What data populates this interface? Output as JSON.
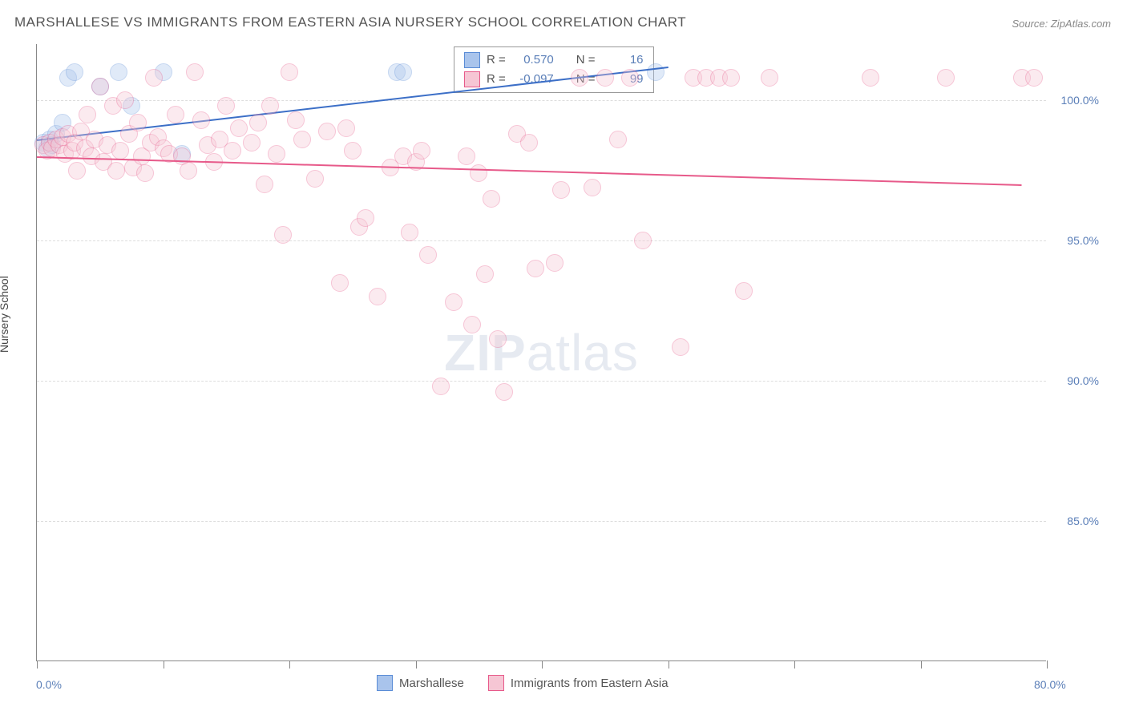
{
  "title": "MARSHALLESE VS IMMIGRANTS FROM EASTERN ASIA NURSERY SCHOOL CORRELATION CHART",
  "source": "Source: ZipAtlas.com",
  "watermark": {
    "zip": "ZIP",
    "atlas": "atlas"
  },
  "chart": {
    "type": "scatter",
    "background_color": "#ffffff",
    "grid_color": "#dddddd",
    "axis_color": "#888888",
    "y_axis_title": "Nursery School",
    "xlim": [
      0,
      80
    ],
    "ylim": [
      80,
      102
    ],
    "x_labels": {
      "min": "0.0%",
      "max": "80.0%"
    },
    "y_ticks": [
      85,
      90,
      95,
      100
    ],
    "y_tick_labels": [
      "85.0%",
      "90.0%",
      "95.0%",
      "100.0%"
    ],
    "x_tick_positions": [
      0,
      10,
      20,
      30,
      40,
      50,
      60,
      70,
      80
    ],
    "marker_radius": 11,
    "marker_opacity": 0.35,
    "label_fontsize": 14,
    "label_color": "#5b7fb8",
    "series": [
      {
        "name": "Marshallese",
        "color_fill": "#a9c4ec",
        "color_stroke": "#5a8cd6",
        "r_value": "0.570",
        "n_value": "16",
        "trend": {
          "x1": 0,
          "y1": 98.6,
          "x2": 50,
          "y2": 101.2,
          "color": "#3c6fc7",
          "width": 2
        },
        "points": [
          [
            0.5,
            98.5
          ],
          [
            0.8,
            98.3
          ],
          [
            1.0,
            98.6
          ],
          [
            1.2,
            98.4
          ],
          [
            1.5,
            98.8
          ],
          [
            2.0,
            99.2
          ],
          [
            2.5,
            100.8
          ],
          [
            3.0,
            101.0
          ],
          [
            5.0,
            100.5
          ],
          [
            6.5,
            101.0
          ],
          [
            7.5,
            99.8
          ],
          [
            10.0,
            101.0
          ],
          [
            11.5,
            98.1
          ],
          [
            28.5,
            101.0
          ],
          [
            29.0,
            101.0
          ],
          [
            49.0,
            101.0
          ]
        ]
      },
      {
        "name": "Immigrants from Eastern Asia",
        "color_fill": "#f6c6d4",
        "color_stroke": "#e75a8a",
        "r_value": "-0.097",
        "n_value": "99",
        "trend": {
          "x1": 0,
          "y1": 98.0,
          "x2": 78,
          "y2": 97.0,
          "color": "#e75a8a",
          "width": 2
        },
        "points": [
          [
            0.5,
            98.4
          ],
          [
            0.8,
            98.2
          ],
          [
            1.0,
            98.5
          ],
          [
            1.2,
            98.3
          ],
          [
            1.5,
            98.6
          ],
          [
            1.8,
            98.4
          ],
          [
            2.0,
            98.7
          ],
          [
            2.2,
            98.1
          ],
          [
            2.5,
            98.8
          ],
          [
            2.8,
            98.2
          ],
          [
            3.0,
            98.5
          ],
          [
            3.2,
            97.5
          ],
          [
            3.5,
            98.9
          ],
          [
            3.8,
            98.3
          ],
          [
            4.0,
            99.5
          ],
          [
            4.3,
            98.0
          ],
          [
            4.6,
            98.6
          ],
          [
            5.0,
            100.5
          ],
          [
            5.3,
            97.8
          ],
          [
            5.6,
            98.4
          ],
          [
            6.0,
            99.8
          ],
          [
            6.3,
            97.5
          ],
          [
            6.6,
            98.2
          ],
          [
            7.0,
            100.0
          ],
          [
            7.3,
            98.8
          ],
          [
            7.6,
            97.6
          ],
          [
            8.0,
            99.2
          ],
          [
            8.3,
            98.0
          ],
          [
            8.6,
            97.4
          ],
          [
            9.0,
            98.5
          ],
          [
            9.3,
            100.8
          ],
          [
            9.6,
            98.7
          ],
          [
            10.0,
            98.3
          ],
          [
            10.5,
            98.1
          ],
          [
            11.0,
            99.5
          ],
          [
            11.5,
            98.0
          ],
          [
            12.0,
            97.5
          ],
          [
            12.5,
            101.0
          ],
          [
            13.0,
            99.3
          ],
          [
            13.5,
            98.4
          ],
          [
            14.0,
            97.8
          ],
          [
            14.5,
            98.6
          ],
          [
            15.0,
            99.8
          ],
          [
            15.5,
            98.2
          ],
          [
            16.0,
            99.0
          ],
          [
            17.0,
            98.5
          ],
          [
            17.5,
            99.2
          ],
          [
            18.0,
            97.0
          ],
          [
            18.5,
            99.8
          ],
          [
            19.0,
            98.1
          ],
          [
            19.5,
            95.2
          ],
          [
            20.0,
            101.0
          ],
          [
            20.5,
            99.3
          ],
          [
            21.0,
            98.6
          ],
          [
            22.0,
            97.2
          ],
          [
            23.0,
            98.9
          ],
          [
            24.0,
            93.5
          ],
          [
            24.5,
            99.0
          ],
          [
            25.0,
            98.2
          ],
          [
            25.5,
            95.5
          ],
          [
            26.0,
            95.8
          ],
          [
            27.0,
            93.0
          ],
          [
            28.0,
            97.6
          ],
          [
            29.0,
            98.0
          ],
          [
            29.5,
            95.3
          ],
          [
            30.0,
            97.8
          ],
          [
            30.5,
            98.2
          ],
          [
            31.0,
            94.5
          ],
          [
            32.0,
            89.8
          ],
          [
            33.0,
            92.8
          ],
          [
            34.0,
            98.0
          ],
          [
            34.5,
            92.0
          ],
          [
            35.0,
            97.4
          ],
          [
            35.5,
            93.8
          ],
          [
            36.0,
            96.5
          ],
          [
            36.5,
            91.5
          ],
          [
            37.0,
            89.6
          ],
          [
            38.0,
            98.8
          ],
          [
            39.0,
            98.5
          ],
          [
            39.5,
            94.0
          ],
          [
            41.0,
            94.2
          ],
          [
            41.5,
            96.8
          ],
          [
            43.0,
            100.8
          ],
          [
            44.0,
            96.9
          ],
          [
            45.0,
            100.8
          ],
          [
            46.0,
            98.6
          ],
          [
            47.0,
            100.8
          ],
          [
            48.0,
            95.0
          ],
          [
            51.0,
            91.2
          ],
          [
            52.0,
            100.8
          ],
          [
            53.0,
            100.8
          ],
          [
            54.0,
            100.8
          ],
          [
            55.0,
            100.8
          ],
          [
            56.0,
            93.2
          ],
          [
            58.0,
            100.8
          ],
          [
            66.0,
            100.8
          ],
          [
            72.0,
            100.8
          ],
          [
            78.0,
            100.8
          ],
          [
            79.0,
            100.8
          ]
        ]
      }
    ],
    "legend": {
      "r_label": "R =",
      "n_label": "N ="
    }
  }
}
